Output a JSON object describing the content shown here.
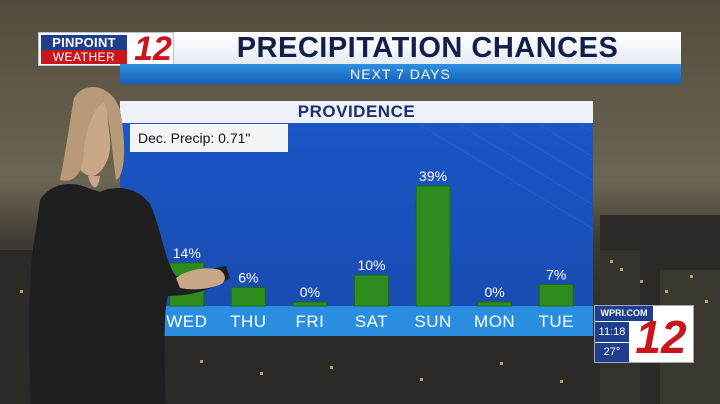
{
  "branding": {
    "logo_line1": "PINPOINT",
    "logo_line2": "WEATHER",
    "channel_number": "12",
    "bug_site": "WPRI.COM",
    "bug_time": "11:18",
    "bug_temp": "27°",
    "bug_number": "12"
  },
  "header": {
    "title": "PRECIPITATION CHANCES",
    "subtitle": "NEXT 7 DAYS"
  },
  "panel": {
    "location": "PROVIDENCE",
    "month_note": "Dec. Precip: 0.71\""
  },
  "colors": {
    "bar": "#2e8b1e",
    "bar_edge": "#1f6a12",
    "panel_blue": "#1a4fb8",
    "day_strip": "#2a8ee0",
    "brand_red": "#c8161d",
    "brand_blue": "#1f3f8c"
  },
  "chart_data": {
    "type": "bar",
    "title": "PRECIPITATION CHANCES",
    "subtitle": "NEXT 7 DAYS",
    "categories": [
      "WED",
      "THU",
      "FRI",
      "SAT",
      "SUN",
      "MON",
      "TUE"
    ],
    "values": [
      14,
      6,
      0,
      10,
      39,
      0,
      7
    ],
    "data_labels": [
      "14%",
      "6%",
      "0%",
      "10%",
      "39%",
      "0%",
      "7%"
    ],
    "unit": "%",
    "ylim": [
      0,
      100
    ],
    "grid": false,
    "legend": "none"
  }
}
